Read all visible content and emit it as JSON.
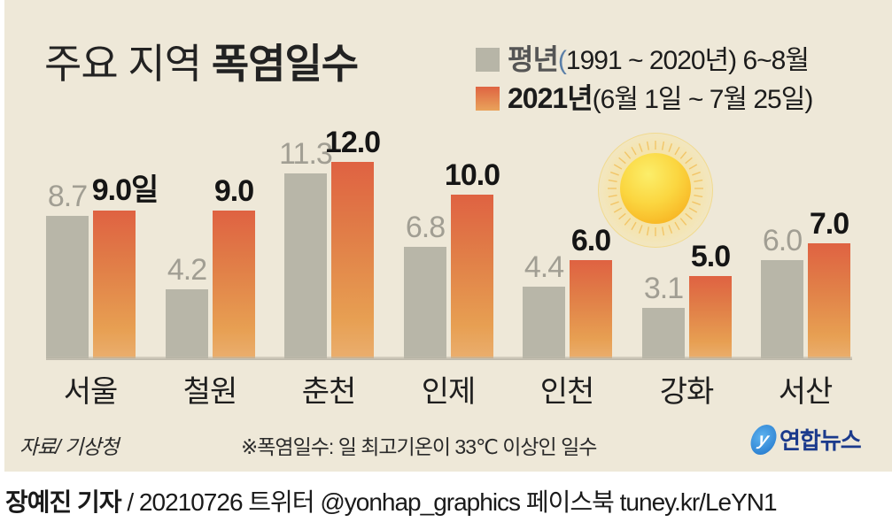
{
  "header": {
    "title_light": "주요 지역",
    "title_bold": "폭염일수"
  },
  "legend": [
    {
      "label_bold": "평년",
      "label_paren": "(",
      "label_rest": "1991 ~ 2020년) 6~8월",
      "color": "#B7B5A7"
    },
    {
      "label_bold": "2021년",
      "label_paren": "",
      "label_rest": "(6월 1일 ~ 7월 25일)",
      "color": "#DF6442"
    }
  ],
  "chart_data": {
    "type": "bar",
    "title": "주요 지역 폭염일수",
    "xlabel": "",
    "ylabel": "",
    "unit": "일",
    "categories": [
      "서울",
      "철원",
      "춘천",
      "인제",
      "인천",
      "강화",
      "서산"
    ],
    "series": [
      {
        "name": "평년(1991 ~ 2020년) 6~8월",
        "color": "#B8B6A8",
        "values": [
          8.7,
          4.2,
          11.3,
          6.8,
          4.4,
          3.1,
          6.0
        ]
      },
      {
        "name": "2021년(6월 1일 ~ 7월 25일)",
        "color": "#DF6242",
        "values": [
          9.0,
          9.0,
          12.0,
          10.0,
          6.0,
          5.0,
          7.0
        ]
      }
    ],
    "labels": {
      "normal": [
        "8.7",
        "4.2",
        "11.3",
        "6.8",
        "4.4",
        "3.1",
        "6.0"
      ],
      "y2021": [
        "9.0일",
        "9.0",
        "12.0",
        "10.0",
        "6.0",
        "5.0",
        "7.0"
      ]
    },
    "ylim": [
      0,
      12
    ],
    "grid": false,
    "legend_position": "top-right"
  },
  "footer": {
    "source": "자료/ 기상청",
    "note": "※폭염일수: 일 최고기온이 33℃ 이상인 일수",
    "logo_text": "연합뉴스",
    "logo_mark": "y"
  },
  "credit": {
    "name": "장예진 기자",
    "rest": " / 20210726 트위터 @yonhap_graphics  페이스북 tuney.kr/LeYN1"
  },
  "decor": {
    "sun_icon": "sun"
  }
}
